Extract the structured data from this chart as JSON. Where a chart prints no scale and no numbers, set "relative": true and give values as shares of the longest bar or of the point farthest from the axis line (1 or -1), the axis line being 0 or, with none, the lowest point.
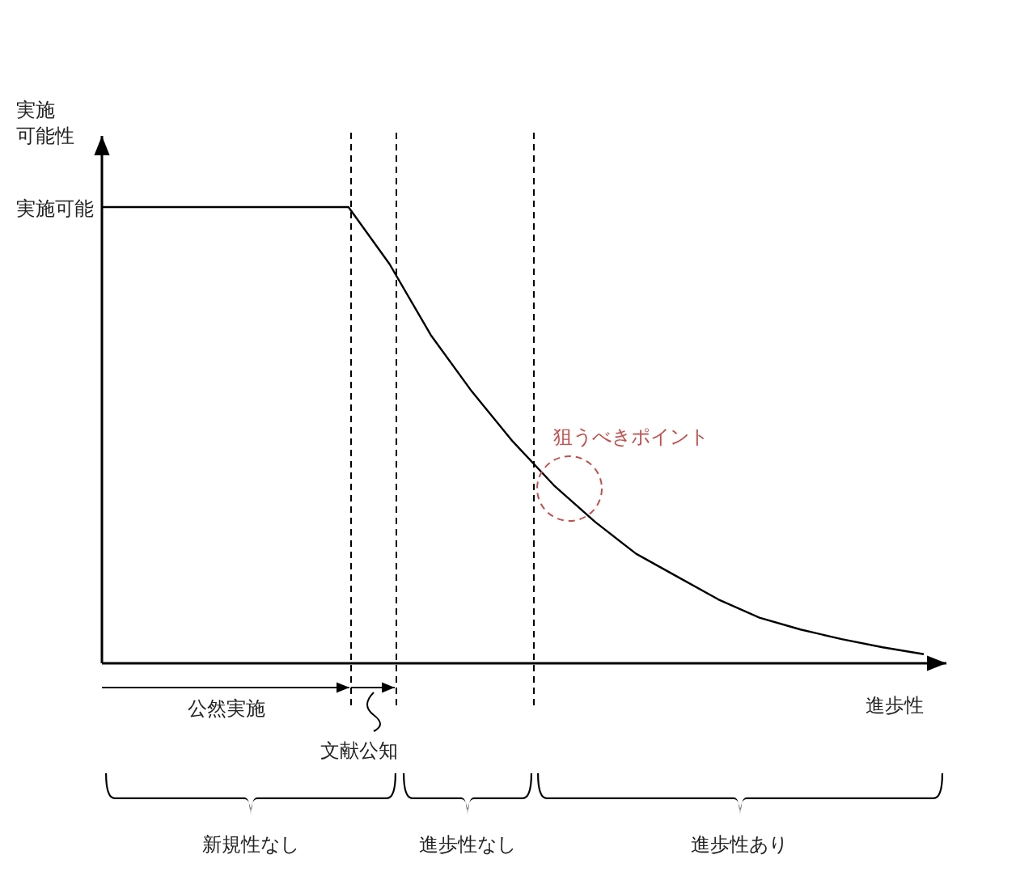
{
  "chart_data": {
    "type": "line",
    "relative": true,
    "xlabel": "進歩性",
    "ylabel": "実施可能性",
    "categories": [
      null,
      null,
      null,
      null,
      null,
      null,
      null,
      null,
      null,
      null,
      null,
      null,
      null,
      null,
      null,
      null,
      null,
      null,
      null,
      null,
      null
    ],
    "series": [
      {
        "color": "#000000",
        "values": [
          1,
          1,
          1,
          1,
          1,
          1,
          1,
          0.875,
          0.72,
          0.596,
          0.486,
          0.39,
          0.31,
          0.24,
          0.19,
          0.14,
          0.1,
          0.074,
          0.053,
          0.035,
          0.02
        ]
      }
    ],
    "annotations": [
      "実施可能",
      "狙うべきポイント",
      "公然実施",
      "文献公知",
      "新規性なし",
      "進歩性なし",
      "進歩性あり"
    ],
    "grid": false,
    "marker": "none",
    "line_style": "solid"
  }
}
